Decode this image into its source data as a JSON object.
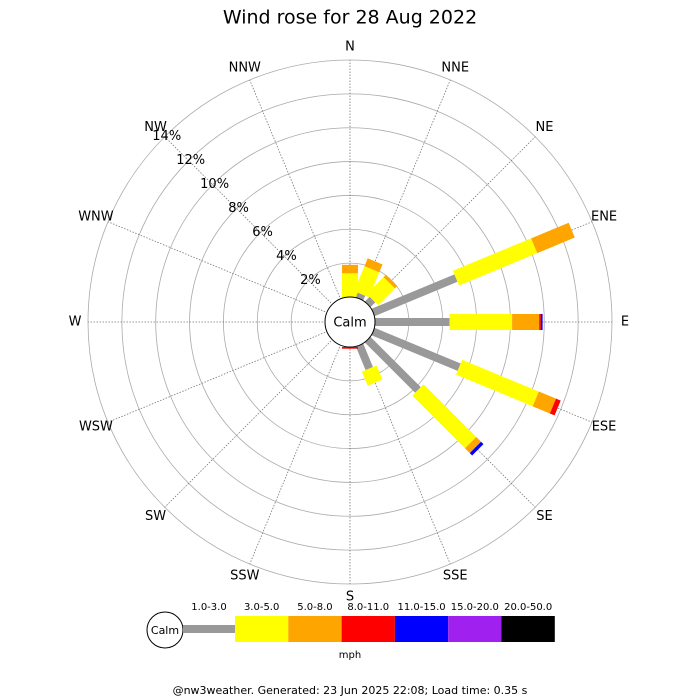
{
  "chart_data": {
    "type": "wind_rose",
    "title": "Wind rose for 28 Aug 2022",
    "categories": [
      "N",
      "NNE",
      "NE",
      "ENE",
      "E",
      "ESE",
      "SE",
      "SSE",
      "S",
      "SSW",
      "SW",
      "WSW",
      "W",
      "WNW",
      "NW",
      "NNW"
    ],
    "center_label": "Calm",
    "rlim": [
      0,
      14
    ],
    "rticks": [
      {
        "value": 2,
        "label": "2%"
      },
      {
        "value": 4,
        "label": "4%"
      },
      {
        "value": 6,
        "label": "6%"
      },
      {
        "value": 8,
        "label": "8%"
      },
      {
        "value": 10,
        "label": "10%"
      },
      {
        "value": 12,
        "label": "12%"
      },
      {
        "value": 14,
        "label": "14%"
      }
    ],
    "grid": true,
    "series": [
      {
        "name": "1.0-3.0",
        "color": "#999999",
        "values": [
          0,
          0.3,
          0.4,
          5.3,
          4.4,
          5.5,
          4.2,
          1.5,
          0,
          0,
          0,
          0,
          0,
          0,
          0,
          0
        ]
      },
      {
        "name": "3.0-5.0",
        "color": "#ffff00",
        "values": [
          1.4,
          1.6,
          1.4,
          5.0,
          3.7,
          4.9,
          4.4,
          0.9,
          0,
          0,
          0,
          0,
          0,
          0,
          0,
          0
        ]
      },
      {
        "name": "5.0-8.0",
        "color": "#ffa500",
        "values": [
          0.5,
          0.5,
          0.2,
          2.4,
          1.6,
          1.1,
          0.4,
          0,
          0,
          0,
          0,
          0,
          0,
          0,
          0,
          0
        ]
      },
      {
        "name": "8.0-11.0",
        "color": "#ff0000",
        "values": [
          0,
          0,
          0,
          0,
          0.1,
          0.3,
          0,
          0,
          0.1,
          0,
          0,
          0,
          0,
          0,
          0,
          0
        ]
      },
      {
        "name": "11.0-15.0",
        "color": "#0000ff",
        "values": [
          0,
          0,
          0,
          0,
          0.1,
          0,
          0.2,
          0,
          0,
          0,
          0,
          0,
          0,
          0,
          0,
          0
        ]
      },
      {
        "name": "15.0-20.0",
        "color": "#a020f0",
        "values": [
          0,
          0,
          0,
          0,
          0,
          0,
          0,
          0,
          0,
          0,
          0,
          0,
          0,
          0,
          0,
          0
        ]
      },
      {
        "name": "20.0-50.0",
        "color": "#000000",
        "values": [
          0,
          0,
          0,
          0,
          0,
          0,
          0,
          0,
          0,
          0,
          0,
          0,
          0,
          0,
          0,
          0
        ]
      }
    ],
    "legend_unit": "mph",
    "footer": "@nw3weather. Generated: 23 Jun 2025 22:08; Load time: 0.35 s"
  }
}
